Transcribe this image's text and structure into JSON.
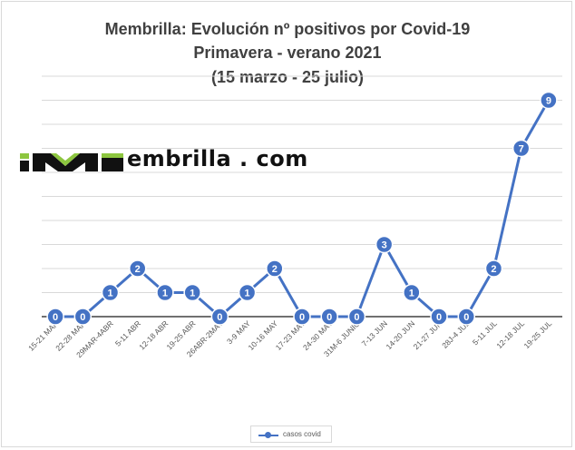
{
  "chart_data": {
    "type": "line",
    "title": "Membrilla: Evolución nº positivos por Covid-19",
    "subtitle": "Primavera - verano 2021",
    "subtitle2": "(15 marzo - 25 julio)",
    "categories": [
      "15-21 MAR",
      "22-28 MAR",
      "29MAR-4ABR",
      "5-11 ABR",
      "12-18 ABR",
      "19-25 ABR",
      "26ABR-2MAY",
      "3-9 MAY",
      "10-16 MAY",
      "17-23 MAY",
      "24-30 MAY",
      "31M-6 JUNIO",
      "7-13 JUN",
      "14-20 JUN",
      "21-27 JUN",
      "28J-4 JUL",
      "5-11 JUL",
      "12-18 JUL",
      "19-25 JUL"
    ],
    "series": [
      {
        "name": "casos covid",
        "values": [
          0,
          0,
          1,
          2,
          1,
          1,
          0,
          1,
          2,
          0,
          0,
          0,
          3,
          1,
          0,
          0,
          2,
          7,
          9
        ],
        "color": "#4472c4"
      }
    ],
    "ylim": [
      0,
      10
    ],
    "grid": true,
    "legend_position": "bottom",
    "data_labels": true
  },
  "logo": {
    "text": "embrilla . com",
    "accent_color": "#8dc63f"
  }
}
